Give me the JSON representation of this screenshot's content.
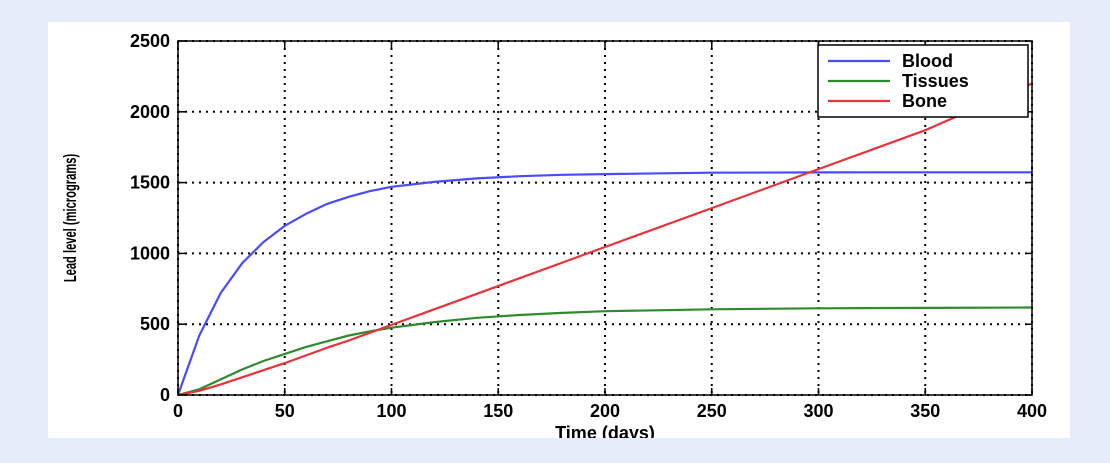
{
  "chart_data": {
    "type": "line",
    "xlabel": "Time (days)",
    "ylabel": "Lead level (micrograms)",
    "xlim": [
      0,
      400
    ],
    "ylim": [
      0,
      2500
    ],
    "xticks": [
      0,
      50,
      100,
      150,
      200,
      250,
      300,
      350,
      400
    ],
    "yticks": [
      0,
      500,
      1000,
      1500,
      2000,
      2500
    ],
    "grid": true,
    "legend_position": "top-right",
    "x": [
      0,
      10,
      20,
      30,
      40,
      50,
      60,
      70,
      80,
      90,
      100,
      120,
      140,
      160,
      180,
      200,
      250,
      300,
      350,
      400
    ],
    "series": [
      {
        "name": "Blood",
        "color": "#4a4aff",
        "values": [
          0,
          420,
          720,
          930,
          1080,
          1195,
          1280,
          1350,
          1400,
          1440,
          1470,
          1505,
          1530,
          1545,
          1555,
          1560,
          1570,
          1572,
          1573,
          1573
        ]
      },
      {
        "name": "Tissues",
        "color": "#2e8b2e",
        "values": [
          0,
          40,
          110,
          180,
          240,
          290,
          340,
          380,
          420,
          450,
          475,
          515,
          545,
          565,
          580,
          592,
          605,
          612,
          615,
          618
        ]
      },
      {
        "name": "Bone",
        "color": "#e8323c",
        "values": [
          0,
          30,
          75,
          125,
          175,
          225,
          280,
          335,
          385,
          440,
          495,
          605,
          715,
          825,
          935,
          1045,
          1320,
          1595,
          1870,
          2200
        ]
      }
    ]
  }
}
